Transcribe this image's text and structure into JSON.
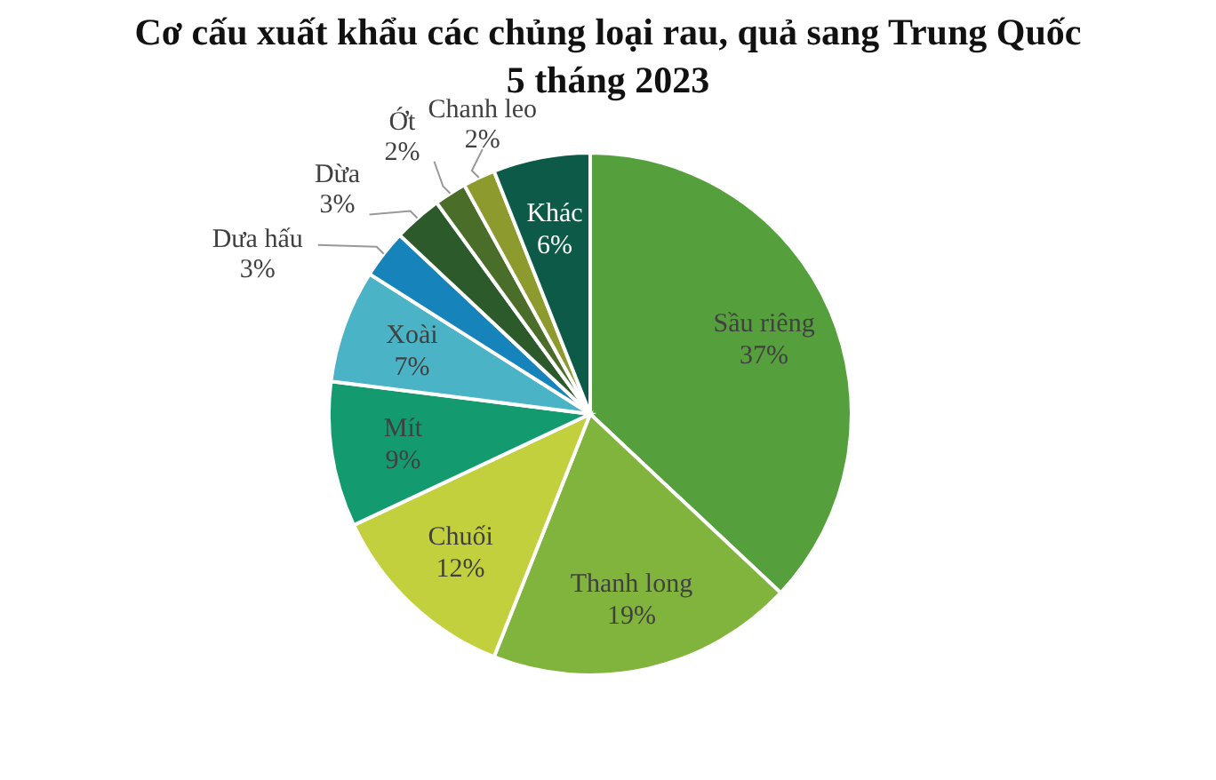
{
  "chart_data": {
    "type": "pie",
    "title": "Cơ cấu xuất khẩu các chủng loại rau, quả sang Trung Quốc\n5 tháng 2023",
    "categories": [
      "Sầu riêng",
      "Thanh long",
      "Chuối",
      "Mít",
      "Xoài",
      "Dưa hấu",
      "Dừa",
      "Ớt",
      "Chanh leo",
      "Khác"
    ],
    "values": [
      37,
      19,
      12,
      9,
      7,
      3,
      3,
      2,
      2,
      6
    ],
    "colors": [
      "#55a03c",
      "#80b43c",
      "#c3d03e",
      "#139a6e",
      "#4ab4c6",
      "#1683bb",
      "#2c5a2a",
      "#4a6e2a",
      "#8c9a2e",
      "#0d5a48"
    ],
    "value_labels": [
      "37%",
      "19%",
      "12%",
      "9%",
      "7%",
      "3%",
      "3%",
      "2%",
      "2%",
      "6%"
    ]
  }
}
